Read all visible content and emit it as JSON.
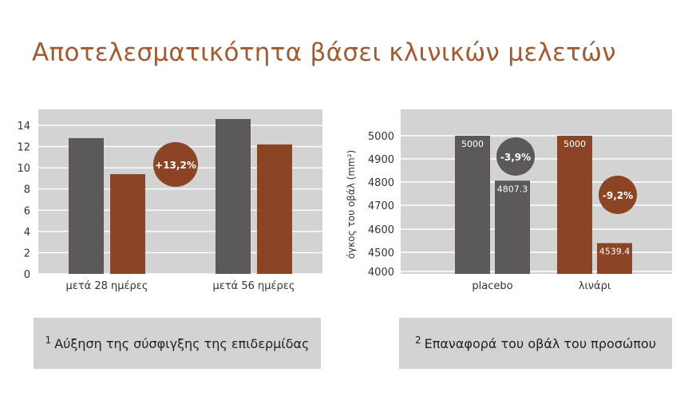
{
  "title": "Αποτελεσματικότητα βάσει κλινικών μελετών",
  "colors": {
    "grey_bar": "#5e5959",
    "brown_bar": "#8b4424",
    "panel": "#d3d3d3",
    "title": "#a15b33"
  },
  "captions": [
    {
      "num": "1",
      "text": "Αύξηση της σύσφιγξης της επιδερμίδας"
    },
    {
      "num": "2",
      "text": "Επαναφορά του οβάλ του προσώπου"
    }
  ],
  "chart_data": [
    {
      "type": "bar",
      "categories": [
        "μετά 28 ημέρες",
        "μετά 56 ημέρες"
      ],
      "series": [
        {
          "values": [
            12.8,
            14.6
          ]
        },
        {
          "values": [
            9.4,
            12.2
          ]
        }
      ],
      "ylim": [
        0,
        14
      ],
      "yticks": [
        "0",
        "2",
        "4",
        "6",
        "8",
        "10",
        "12",
        "14"
      ],
      "ylabel": "",
      "grid": true,
      "annotations": [
        {
          "text": "+13,2%",
          "category": "μετά 28 ημέρες"
        }
      ]
    },
    {
      "type": "bar",
      "categories": [
        "placebo",
        "λινάρι"
      ],
      "series": [
        {
          "values": [
            5000,
            4807.3
          ],
          "labels": [
            "5000",
            "4807.3"
          ]
        }
      ],
      "brown_values": [
        5000,
        4539.4
      ],
      "brown_labels": [
        "5000",
        "4539.4"
      ],
      "ylim": [
        4000,
        5000
      ],
      "yticks": [
        "4000",
        "4500",
        "4600",
        "4700",
        "4800",
        "4900",
        "5000"
      ],
      "ylabel": "όγκος του οβάλ (mm²)",
      "grid": true,
      "annotations": [
        {
          "text": "-3,9%",
          "category": "placebo"
        },
        {
          "text": "-9,2%",
          "category": "λινάρι"
        }
      ]
    }
  ]
}
